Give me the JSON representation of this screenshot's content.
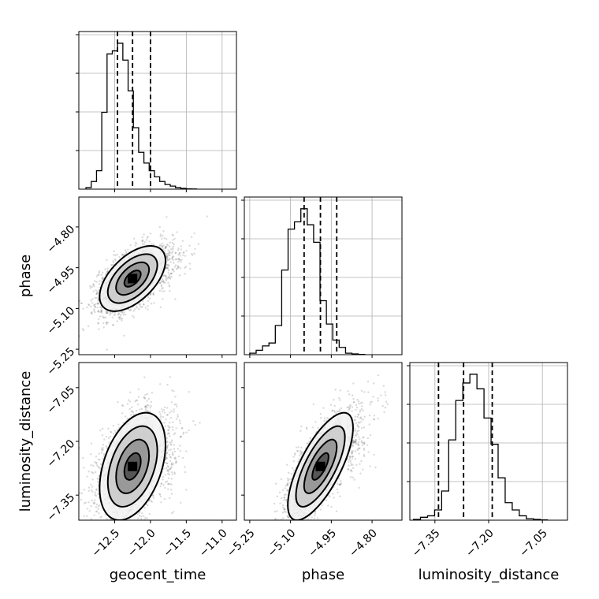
{
  "chart_data": {
    "type": "corner",
    "parameters": [
      {
        "name": "geocent_time",
        "label": "geocent_time",
        "range": [
          -13.0,
          -10.8
        ],
        "ticks": [
          -12.5,
          -12.0,
          -11.5,
          -11.0
        ],
        "tick_labels": [
          "−12.5",
          "−12.0",
          "−11.5",
          "−11.0"
        ],
        "quantiles": [
          -12.46,
          -12.25,
          -12.0
        ],
        "hist_bins": {
          "start": -12.9,
          "width": 0.0735,
          "counts": [
            1,
            5,
            12,
            50,
            88,
            90,
            95,
            84,
            64,
            40,
            24,
            17,
            12,
            8,
            5,
            3,
            2,
            1,
            0.5,
            0.2,
            0.1
          ]
        }
      },
      {
        "name": "phase",
        "label": "phase",
        "range": [
          -5.27,
          -4.69
        ],
        "ticks": [
          -5.25,
          -5.1,
          -4.95,
          -4.8
        ],
        "tick_labels": [
          "−5.25",
          "−5.10",
          "−4.95",
          "−4.80"
        ],
        "quantiles": [
          -5.05,
          -4.99,
          -4.93
        ],
        "hist_bins": {
          "start": -5.25,
          "width": 0.0235,
          "counts": [
            1,
            3,
            6,
            8,
            20,
            58,
            86,
            91,
            100,
            89,
            77,
            37,
            21,
            10,
            5,
            1,
            0.5,
            0.2
          ]
        }
      },
      {
        "name": "luminosity_distance",
        "label": "luminosity_distance",
        "range": [
          -7.42,
          -6.98
        ],
        "ticks": [
          -7.35,
          -7.2,
          -7.05
        ],
        "tick_labels": [
          "−7.35",
          "−7.20",
          "−7.05"
        ],
        "quantiles": [
          -7.34,
          -7.27,
          -7.19
        ],
        "hist_bins": {
          "start": -7.41,
          "width": 0.0197,
          "counts": [
            0.5,
            2,
            3,
            7,
            20,
            55,
            82,
            94,
            100,
            90,
            70,
            52,
            29,
            12,
            7,
            3,
            1,
            0.5,
            0.2
          ]
        }
      }
    ],
    "correlations": [
      {
        "x": 0,
        "y": 1,
        "mean": [
          -12.25,
          -4.99
        ],
        "rho": 0.55
      },
      {
        "x": 0,
        "y": 2,
        "mean": [
          -12.25,
          -7.27
        ],
        "rho": 0.4
      },
      {
        "x": 1,
        "y": 2,
        "mean": [
          -4.99,
          -7.27
        ],
        "rho": 0.72
      }
    ],
    "grid": true,
    "colors": {
      "line": "#000000",
      "grid": "#b0b0b0",
      "points": "#555555"
    }
  }
}
